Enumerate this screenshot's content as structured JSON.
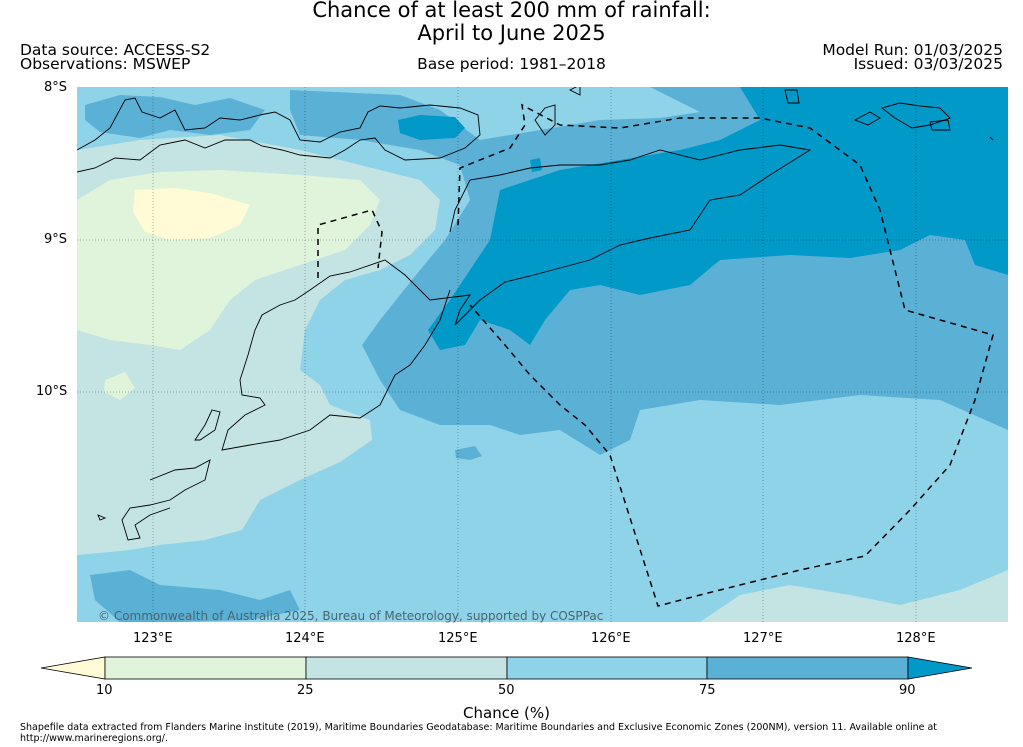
{
  "title": {
    "line1": "Chance of at least 200 mm of rainfall:",
    "line2": "April to June 2025"
  },
  "header": {
    "data_source": "Data source: ACCESS-S2",
    "observations": "Observations: MSWEP",
    "base_period": "Base period: 1981–2018",
    "model_run": "Model Run: 01/03/2025",
    "issued": "Issued: 03/03/2025"
  },
  "map": {
    "latitude_labels": [
      "8°S",
      "9°S",
      "10°S"
    ],
    "longitude_labels": [
      "123°E",
      "124°E",
      "125°E",
      "126°E",
      "127°E",
      "128°E"
    ],
    "copyright": "© Commonwealth of Australia 2025, Bureau of Meteorology, supported by COSPPac"
  },
  "colorbar": {
    "label": "Chance (%)",
    "ticks": [
      "10",
      "25",
      "50",
      "75",
      "90"
    ],
    "colors": [
      "#fffbd6",
      "#dff4db",
      "#c4e4e4",
      "#8fd3e8",
      "#5ab1d5",
      "#0099c8"
    ]
  },
  "footnote": "Shapefile data extracted from Flanders Marine Institute (2019), Maritime Boundaries Geodatabase: Maritime Boundaries and Exclusive Economic Zones (200NM), version 11. Available online at http://www.marineregions.org/."
}
